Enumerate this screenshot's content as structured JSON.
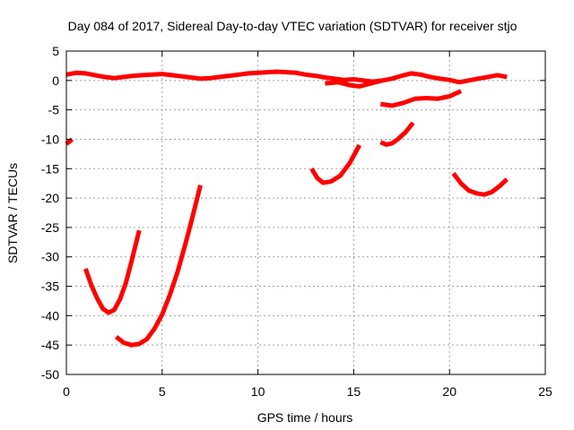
{
  "chart_data": {
    "type": "line",
    "title": "Day 084 of 2017, Sidereal Day-to-day VTEC variation (SDTVAR) for receiver stjo",
    "xlabel": "GPS time / hours",
    "ylabel": "SDTVAR / TECUs",
    "xlim": [
      0,
      25
    ],
    "ylim": [
      -50,
      5
    ],
    "xticks": [
      0,
      5,
      10,
      15,
      20,
      25
    ],
    "yticks": [
      5,
      0,
      -5,
      -10,
      -15,
      -20,
      -25,
      -30,
      -35,
      -40,
      -45,
      -50
    ],
    "grid": true,
    "legend": "none",
    "series_color": "#ff0000",
    "series": [
      {
        "x": [
          0.0,
          0.5,
          1.0,
          1.5,
          2.0,
          2.5,
          3.0,
          3.5,
          4.0,
          4.5,
          5.0,
          5.5,
          6.0,
          6.5,
          7.0,
          7.5,
          8.0,
          8.5,
          9.0,
          9.5,
          10.0,
          10.5,
          11.0,
          11.5,
          12.0,
          12.5,
          13.0,
          13.5,
          14.0,
          14.5,
          15.0,
          15.5,
          16.0,
          16.5,
          17.0,
          17.5,
          18.0,
          18.5,
          19.0,
          19.5,
          20.0,
          20.5,
          21.0,
          21.5,
          22.0,
          22.5,
          23.0
        ],
        "y": [
          1.0,
          1.3,
          1.2,
          0.9,
          0.6,
          0.4,
          0.6,
          0.8,
          0.9,
          1.0,
          1.1,
          0.9,
          0.7,
          0.5,
          0.3,
          0.4,
          0.6,
          0.8,
          1.0,
          1.2,
          1.3,
          1.4,
          1.5,
          1.4,
          1.3,
          1.0,
          0.8,
          0.5,
          0.3,
          0.1,
          0.2,
          0.0,
          -0.2,
          0.0,
          0.3,
          0.8,
          1.2,
          1.0,
          0.6,
          0.3,
          0.1,
          -0.3,
          0.0,
          0.3,
          0.6,
          0.9,
          0.6
        ]
      },
      {
        "x": [
          13.5,
          14.2,
          14.8,
          15.3,
          15.9,
          16.5
        ],
        "y": [
          -0.5,
          -0.3,
          -0.8,
          -1.0,
          -0.5,
          0.0
        ]
      },
      {
        "x": [
          0.0,
          0.3
        ],
        "y": [
          -10.8,
          -10.0
        ]
      },
      {
        "x": [
          1.0,
          1.3,
          1.6,
          1.9,
          2.2,
          2.5,
          2.8,
          3.1,
          3.4,
          3.8
        ],
        "y": [
          -32.0,
          -34.8,
          -37.0,
          -38.8,
          -39.5,
          -39.0,
          -37.2,
          -34.5,
          -30.8,
          -25.5
        ]
      },
      {
        "x": [
          2.6,
          3.0,
          3.4,
          3.8,
          4.2,
          4.6,
          5.0,
          5.4,
          5.8,
          6.2,
          6.6,
          7.0
        ],
        "y": [
          -43.6,
          -44.6,
          -45.0,
          -44.8,
          -44.0,
          -42.2,
          -39.8,
          -36.5,
          -32.6,
          -28.0,
          -23.0,
          -17.8
        ]
      },
      {
        "x": [
          12.8,
          13.1,
          13.4,
          13.8,
          14.3,
          14.8,
          15.3
        ],
        "y": [
          -15.0,
          -16.6,
          -17.4,
          -17.2,
          -16.2,
          -14.0,
          -11.0
        ]
      },
      {
        "x": [
          16.4,
          16.7,
          17.0,
          17.3,
          17.7,
          18.1
        ],
        "y": [
          -10.5,
          -10.9,
          -10.7,
          -10.0,
          -8.8,
          -7.2
        ]
      },
      {
        "x": [
          16.4,
          17.0,
          17.6,
          18.2,
          18.8,
          19.4,
          20.0,
          20.6
        ],
        "y": [
          -4.0,
          -4.3,
          -3.8,
          -3.1,
          -3.0,
          -3.1,
          -2.7,
          -1.8
        ]
      },
      {
        "x": [
          20.2,
          20.6,
          21.0,
          21.4,
          21.8,
          22.2,
          22.6,
          23.0
        ],
        "y": [
          -15.8,
          -17.5,
          -18.7,
          -19.2,
          -19.4,
          -19.0,
          -18.0,
          -16.8
        ]
      }
    ]
  }
}
